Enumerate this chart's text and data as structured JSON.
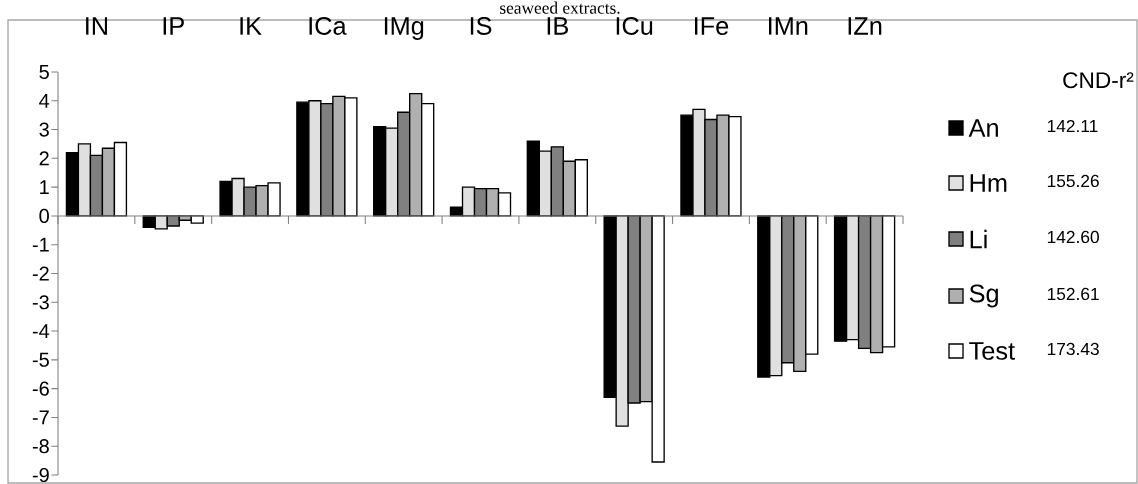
{
  "chart_data": {
    "type": "bar",
    "title": "seaweed extracts.",
    "categories": [
      "IN",
      "IP",
      "IK",
      "ICa",
      "IMg",
      "IS",
      "IB",
      "ICu",
      "IFe",
      "IMn",
      "IZn"
    ],
    "series": [
      {
        "name": "An",
        "color": "#000000",
        "values": [
          2.2,
          -0.4,
          1.2,
          3.95,
          3.1,
          0.3,
          2.6,
          -6.3,
          3.5,
          -5.6,
          -4.35
        ]
      },
      {
        "name": "Hm",
        "color": "#e0e0e0",
        "values": [
          2.5,
          -0.45,
          1.3,
          4.0,
          3.05,
          1.0,
          2.25,
          -7.3,
          3.7,
          -5.55,
          -4.3
        ]
      },
      {
        "name": "Li",
        "color": "#808080",
        "values": [
          2.1,
          -0.35,
          1.0,
          3.9,
          3.6,
          0.95,
          2.4,
          -6.5,
          3.35,
          -5.1,
          -4.6
        ]
      },
      {
        "name": "Sg",
        "color": "#b0b0b0",
        "values": [
          2.35,
          -0.15,
          1.05,
          4.15,
          4.25,
          0.95,
          1.9,
          -6.45,
          3.5,
          -5.4,
          -4.75
        ]
      },
      {
        "name": "Test",
        "color": "#ffffff",
        "values": [
          2.55,
          -0.25,
          1.15,
          4.1,
          3.9,
          0.8,
          1.95,
          -8.55,
          3.45,
          -4.8,
          -4.55
        ]
      }
    ],
    "legend_title": "CND-r²",
    "annotations": [
      "142.11",
      "155.26",
      "142.60",
      "152.61",
      "173.43"
    ],
    "ylim": [
      -9,
      5
    ],
    "yticks": [
      -9,
      -8,
      -7,
      -6,
      -5,
      -4,
      -3,
      -2,
      -1,
      0,
      1,
      2,
      3,
      4,
      5
    ],
    "legend": "right"
  }
}
